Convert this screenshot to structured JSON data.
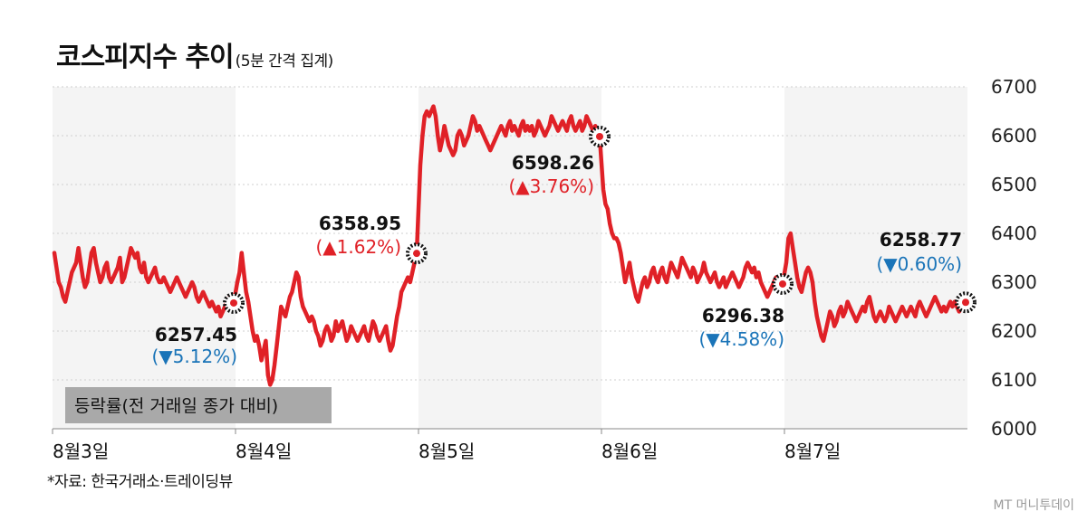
{
  "title": "코스피지수 추이",
  "subtitle": "(5분 간격 집계)",
  "source": "*자료: 한국거래소·트레이딩뷰",
  "brand": "MT 머니투데이",
  "colors": {
    "line": "#e02127",
    "up": "#e02127",
    "down": "#1a74b8",
    "band": "#f4f4f4",
    "grid": "#cfcfcf",
    "legend_bg": "#a9a9a9"
  },
  "legend_box": "등락률(전 거래일 종가 대비)",
  "chart_data": {
    "type": "line",
    "title": "코스피지수 추이",
    "subtitle": "(5분 간격 집계)",
    "xlabel": "",
    "ylabel": "",
    "y_axis_side": "right",
    "ylim": [
      6000,
      6700
    ],
    "yticks": [
      6000,
      6100,
      6200,
      6300,
      6400,
      6500,
      6600,
      6700
    ],
    "grid": "horizontal dotted",
    "days": [
      "8월3일",
      "8월4일",
      "8월5일",
      "8월6일",
      "8월7일"
    ],
    "series": [
      {
        "values": [
          [
            6360,
            6330,
            6300,
            6290,
            6270,
            6260,
            6280,
            6300,
            6320,
            6330,
            6340,
            6370,
            6340,
            6310,
            6290,
            6300,
            6330,
            6360,
            6370,
            6340,
            6320,
            6300,
            6310,
            6330,
            6340,
            6310,
            6300,
            6310,
            6320,
            6330,
            6350,
            6300,
            6310,
            6330,
            6350,
            6370,
            6360,
            6350,
            6360,
            6330,
            6320,
            6340,
            6310,
            6300,
            6310,
            6320,
            6330,
            6310,
            6300,
            6300,
            6310,
            6300,
            6290,
            6280,
            6290,
            6300,
            6310,
            6300,
            6290,
            6280,
            6270,
            6280,
            6290,
            6300,
            6290,
            6270,
            6260,
            6270,
            6280,
            6270,
            6260,
            6250,
            6260,
            6250,
            6240,
            6250,
            6230,
            6240,
            6250,
            6260,
            6270,
            6260,
            6257.45
          ],
          [
            6300,
            6320,
            6360,
            6320,
            6280,
            6260,
            6230,
            6200,
            6180,
            6190,
            6170,
            6140,
            6160,
            6180,
            6110,
            6090,
            6100,
            6130,
            6170,
            6210,
            6250,
            6240,
            6230,
            6250,
            6270,
            6280,
            6300,
            6320,
            6310,
            6270,
            6250,
            6240,
            6230,
            6220,
            6230,
            6220,
            6200,
            6190,
            6170,
            6180,
            6200,
            6210,
            6200,
            6180,
            6190,
            6220,
            6200,
            6210,
            6220,
            6200,
            6180,
            6190,
            6210,
            6200,
            6190,
            6180,
            6190,
            6200,
            6210,
            6190,
            6180,
            6200,
            6220,
            6210,
            6190,
            6180,
            6190,
            6200,
            6210,
            6180,
            6160,
            6170,
            6200,
            6230,
            6250,
            6280,
            6290,
            6300,
            6310,
            6300,
            6320,
            6340,
            6358.95
          ],
          [
            6540,
            6600,
            6640,
            6650,
            6640,
            6650,
            6660,
            6640,
            6600,
            6570,
            6590,
            6620,
            6600,
            6580,
            6570,
            6560,
            6570,
            6600,
            6610,
            6600,
            6580,
            6590,
            6600,
            6620,
            6640,
            6630,
            6610,
            6620,
            6610,
            6600,
            6590,
            6580,
            6570,
            6580,
            6590,
            6600,
            6610,
            6620,
            6610,
            6600,
            6620,
            6630,
            6610,
            6620,
            6610,
            6600,
            6620,
            6630,
            6610,
            6620,
            6610,
            6620,
            6600,
            6610,
            6630,
            6620,
            6610,
            6600,
            6610,
            6620,
            6640,
            6630,
            6620,
            6610,
            6620,
            6630,
            6620,
            6610,
            6630,
            6640,
            6620,
            6610,
            6620,
            6630,
            6610,
            6620,
            6640,
            6630,
            6620,
            6610,
            6620,
            6610,
            6598.26
          ],
          [
            6490,
            6460,
            6450,
            6420,
            6400,
            6390,
            6390,
            6380,
            6360,
            6330,
            6300,
            6320,
            6340,
            6310,
            6290,
            6270,
            6260,
            6280,
            6300,
            6310,
            6290,
            6300,
            6320,
            6330,
            6310,
            6300,
            6320,
            6330,
            6310,
            6300,
            6320,
            6340,
            6330,
            6320,
            6310,
            6330,
            6350,
            6340,
            6330,
            6320,
            6310,
            6330,
            6320,
            6300,
            6310,
            6320,
            6340,
            6320,
            6310,
            6300,
            6310,
            6320,
            6300,
            6290,
            6300,
            6310,
            6290,
            6300,
            6310,
            6320,
            6310,
            6300,
            6290,
            6300,
            6310,
            6330,
            6340,
            6330,
            6320,
            6330,
            6310,
            6320,
            6300,
            6290,
            6280,
            6270,
            6280,
            6290,
            6300,
            6310,
            6300,
            6290,
            6296.38
          ],
          [
            6340,
            6390,
            6400,
            6370,
            6340,
            6310,
            6290,
            6280,
            6300,
            6320,
            6330,
            6320,
            6300,
            6260,
            6230,
            6210,
            6190,
            6180,
            6200,
            6220,
            6240,
            6230,
            6210,
            6220,
            6240,
            6250,
            6230,
            6240,
            6260,
            6250,
            6240,
            6230,
            6220,
            6230,
            6240,
            6250,
            6240,
            6260,
            6270,
            6250,
            6230,
            6220,
            6230,
            6240,
            6230,
            6220,
            6230,
            6250,
            6240,
            6230,
            6220,
            6230,
            6240,
            6250,
            6240,
            6230,
            6240,
            6250,
            6240,
            6230,
            6250,
            6260,
            6250,
            6240,
            6230,
            6240,
            6250,
            6260,
            6270,
            6260,
            6250,
            6240,
            6250,
            6240,
            6250,
            6260,
            6250,
            6260,
            6250,
            6240,
            6250,
            6260,
            6258.77
          ]
        ]
      }
    ],
    "annotations": [
      {
        "day": 0,
        "value": 6257.45,
        "label": "6257.45",
        "change": "(▼5.12%)",
        "direction": "down"
      },
      {
        "day": 1,
        "value": 6358.95,
        "label": "6358.95",
        "change": "(▲1.62%)",
        "direction": "up"
      },
      {
        "day": 2,
        "value": 6598.26,
        "label": "6598.26",
        "change": "(▲3.76%)",
        "direction": "up"
      },
      {
        "day": 3,
        "value": 6296.38,
        "label": "6296.38",
        "change": "(▼4.58%)",
        "direction": "down"
      },
      {
        "day": 4,
        "value": 6258.77,
        "label": "6258.77",
        "change": "(▼0.60%)",
        "direction": "down"
      }
    ]
  }
}
